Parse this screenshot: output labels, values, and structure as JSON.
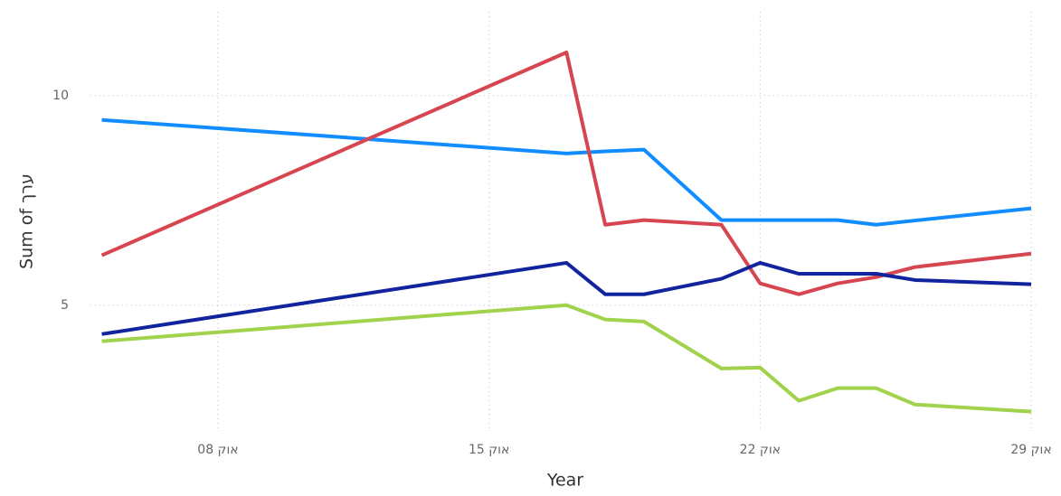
{
  "chart_data": {
    "type": "line",
    "x_label": "Year",
    "y_label": "Sum of ערך",
    "x": [
      5,
      17,
      18,
      19,
      21,
      22,
      23,
      24,
      25,
      26,
      29
    ],
    "series": [
      {
        "color": "#118dff",
        "values": [
          9.42,
          8.62,
          8.67,
          8.71,
          7.03,
          7.03,
          7.03,
          7.03,
          6.92,
          7.02,
          7.31
        ]
      },
      {
        "color": "#d64550",
        "values": [
          6.19,
          11.03,
          6.92,
          7.03,
          6.92,
          5.52,
          5.26,
          5.52,
          5.67,
          5.91,
          6.23
        ]
      },
      {
        "color": "#12239e",
        "values": [
          4.31,
          6.01,
          5.26,
          5.26,
          5.63,
          6.01,
          5.75,
          5.75,
          5.75,
          5.6,
          5.5
        ]
      },
      {
        "color": "#a0d24c",
        "values": [
          4.14,
          5.0,
          4.66,
          4.61,
          3.49,
          3.51,
          2.72,
          3.02,
          3.02,
          2.63,
          2.46
        ]
      }
    ],
    "xlim": [
      4.7,
      29.2
    ],
    "xticks": [
      {
        "value": 8,
        "label": "אוק 08"
      },
      {
        "value": 15,
        "label": "אוק 15"
      },
      {
        "value": 22,
        "label": "אוק 22"
      },
      {
        "value": 29,
        "label": "אוק 29"
      }
    ],
    "ylim": [
      2,
      12
    ],
    "yticks": [
      5,
      10
    ],
    "grid": true
  }
}
